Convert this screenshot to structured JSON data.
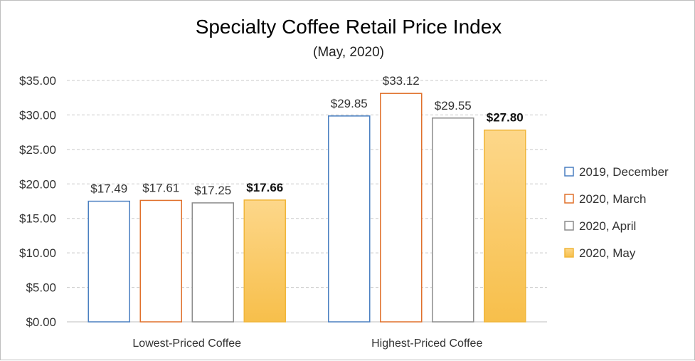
{
  "chart_data": {
    "type": "bar",
    "title": "Specialty Coffee Retail Price Index",
    "subtitle": "(May,  2020)",
    "categories": [
      "Lowest-Priced Coffee",
      "Highest-Priced Coffee"
    ],
    "series": [
      {
        "name": "2019, December",
        "values": [
          17.49,
          29.85
        ],
        "labels": [
          "$17.49",
          "$29.85"
        ],
        "color": "#4a7fc1",
        "fill": "none",
        "bold": false
      },
      {
        "name": "2020, March",
        "values": [
          17.61,
          33.12
        ],
        "labels": [
          "$17.61",
          "$33.12"
        ],
        "color": "#e0702b",
        "fill": "none",
        "bold": false
      },
      {
        "name": "2020, April",
        "values": [
          17.25,
          29.55
        ],
        "labels": [
          "$17.25",
          "$29.55"
        ],
        "color": "#8c8c8c",
        "fill": "none",
        "bold": false
      },
      {
        "name": "2020, May",
        "values": [
          17.66,
          27.8
        ],
        "labels": [
          "$17.66",
          "$27.80"
        ],
        "color": "#f0b63a",
        "fill": "gradient",
        "bold": true
      }
    ],
    "yticks": [
      "$0.00",
      "$5.00",
      "$10.00",
      "$15.00",
      "$20.00",
      "$25.00",
      "$30.00",
      "$35.00"
    ],
    "ylim": [
      0,
      35
    ],
    "grid": true,
    "legend_position": "right"
  }
}
